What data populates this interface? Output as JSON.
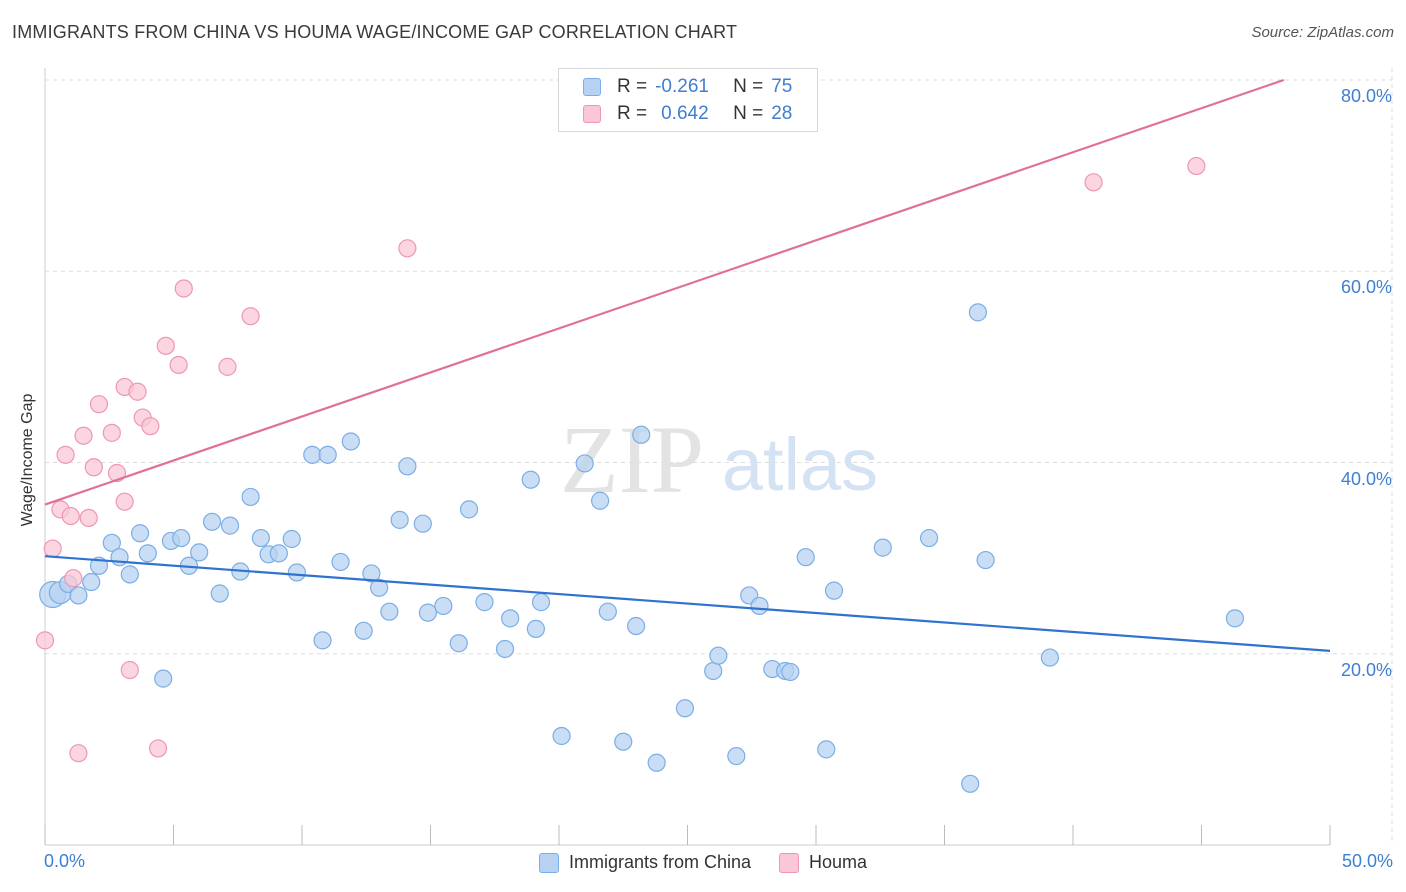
{
  "header": {
    "title": "IMMIGRANTS FROM CHINA VS HOUMA WAGE/INCOME GAP CORRELATION CHART",
    "source": "Source: ZipAtlas.com"
  },
  "watermark": {
    "zip": "ZIP",
    "atlas": "atlas"
  },
  "legend_top": {
    "rows": [
      {
        "r_label": "R =",
        "r_value": "-0.261",
        "n_label": "N =",
        "n_value": "75"
      },
      {
        "r_label": "R =",
        "r_value": "0.642",
        "n_label": "N =",
        "n_value": "28"
      }
    ]
  },
  "legend_bottom": {
    "items": [
      {
        "label": "Immigrants from China"
      },
      {
        "label": "Houma"
      }
    ]
  },
  "colors": {
    "blue_fill": "#b7d1f2",
    "blue_stroke": "#7aaee6",
    "blue_line": "#2f72cf",
    "pink_fill": "#f9c7d6",
    "pink_stroke": "#ee97b3",
    "pink_line": "#e0709a",
    "tick_text": "#3f7ed0",
    "grid": "#dddddd"
  },
  "chart_data": {
    "type": "scatter",
    "title": "IMMIGRANTS FROM CHINA VS HOUMA WAGE/INCOME GAP CORRELATION CHART",
    "xlabel": "",
    "ylabel": "Wage/Income Gap",
    "xlim": [
      0,
      50
    ],
    "ylim": [
      0,
      80
    ],
    "x_tick_labels": [
      "0.0%",
      "50.0%"
    ],
    "y_ticks": [
      20,
      40,
      60,
      80
    ],
    "y_tick_labels": [
      "20.0%",
      "40.0%",
      "60.0%",
      "80.0%"
    ],
    "grid": true,
    "legend_position": "top-center",
    "series": [
      {
        "name": "Immigrants from China",
        "r": -0.261,
        "n": 75,
        "trend": {
          "x": [
            0,
            50
          ],
          "y": [
            30.2,
            20.3
          ]
        },
        "points": [
          [
            0.3,
            26.2
          ],
          [
            0.6,
            26.4
          ],
          [
            0.9,
            27.3
          ],
          [
            1.3,
            26.1
          ],
          [
            1.8,
            27.5
          ],
          [
            2.1,
            29.2
          ],
          [
            2.6,
            31.6
          ],
          [
            2.9,
            30.1
          ],
          [
            3.3,
            28.3
          ],
          [
            3.7,
            32.6
          ],
          [
            4.0,
            30.5
          ],
          [
            4.6,
            17.4
          ],
          [
            4.9,
            31.8
          ],
          [
            5.3,
            32.1
          ],
          [
            5.6,
            29.2
          ],
          [
            6.0,
            30.6
          ],
          [
            6.5,
            33.8
          ],
          [
            6.8,
            26.3
          ],
          [
            7.2,
            33.4
          ],
          [
            7.6,
            28.6
          ],
          [
            8.0,
            36.4
          ],
          [
            8.4,
            32.1
          ],
          [
            8.7,
            30.4
          ],
          [
            9.1,
            30.5
          ],
          [
            9.6,
            32.0
          ],
          [
            9.8,
            28.5
          ],
          [
            10.4,
            40.8
          ],
          [
            10.8,
            21.4
          ],
          [
            11.0,
            40.8
          ],
          [
            11.5,
            29.6
          ],
          [
            11.9,
            42.2
          ],
          [
            12.4,
            22.4
          ],
          [
            12.7,
            28.4
          ],
          [
            13.0,
            26.9
          ],
          [
            13.4,
            24.4
          ],
          [
            13.8,
            34.0
          ],
          [
            14.1,
            39.6
          ],
          [
            14.7,
            33.6
          ],
          [
            14.9,
            24.3
          ],
          [
            15.5,
            25.0
          ],
          [
            16.1,
            21.1
          ],
          [
            16.5,
            35.1
          ],
          [
            17.1,
            25.4
          ],
          [
            17.9,
            20.5
          ],
          [
            18.1,
            23.7
          ],
          [
            18.9,
            38.2
          ],
          [
            19.1,
            22.6
          ],
          [
            19.3,
            25.4
          ],
          [
            20.1,
            11.4
          ],
          [
            21.0,
            39.9
          ],
          [
            21.6,
            36.0
          ],
          [
            21.9,
            24.4
          ],
          [
            22.5,
            10.8
          ],
          [
            23.0,
            22.9
          ],
          [
            23.2,
            42.9
          ],
          [
            23.8,
            8.6
          ],
          [
            24.9,
            14.3
          ],
          [
            26.0,
            18.2
          ],
          [
            26.2,
            19.8
          ],
          [
            26.9,
            9.3
          ],
          [
            27.4,
            26.1
          ],
          [
            27.8,
            25.0
          ],
          [
            28.3,
            18.4
          ],
          [
            28.8,
            18.2
          ],
          [
            29.0,
            18.1
          ],
          [
            29.6,
            30.1
          ],
          [
            30.4,
            10.0
          ],
          [
            30.7,
            26.6
          ],
          [
            32.6,
            31.1
          ],
          [
            34.4,
            32.1
          ],
          [
            36.0,
            6.4
          ],
          [
            36.3,
            55.7
          ],
          [
            36.6,
            29.8
          ],
          [
            39.1,
            19.6
          ],
          [
            46.3,
            23.7
          ]
        ]
      },
      {
        "name": "Houma",
        "r": 0.642,
        "n": 28,
        "trend": {
          "x": [
            0,
            48.2
          ],
          "y": [
            35.6,
            80.0
          ]
        },
        "points": [
          [
            0.0,
            21.4
          ],
          [
            0.3,
            31.0
          ],
          [
            0.6,
            35.1
          ],
          [
            0.8,
            40.8
          ],
          [
            1.0,
            34.4
          ],
          [
            1.1,
            27.9
          ],
          [
            1.3,
            9.6
          ],
          [
            1.5,
            42.8
          ],
          [
            1.7,
            34.2
          ],
          [
            1.9,
            39.5
          ],
          [
            2.1,
            46.1
          ],
          [
            2.6,
            43.1
          ],
          [
            2.8,
            38.9
          ],
          [
            3.1,
            47.9
          ],
          [
            3.1,
            35.9
          ],
          [
            3.3,
            18.3
          ],
          [
            3.6,
            47.4
          ],
          [
            3.8,
            44.7
          ],
          [
            4.1,
            43.8
          ],
          [
            4.4,
            10.1
          ],
          [
            4.7,
            52.2
          ],
          [
            5.2,
            50.2
          ],
          [
            5.4,
            58.2
          ],
          [
            7.1,
            50.0
          ],
          [
            8.0,
            55.3
          ],
          [
            14.1,
            62.4
          ],
          [
            40.8,
            69.3
          ],
          [
            44.8,
            71.0
          ]
        ]
      }
    ]
  }
}
